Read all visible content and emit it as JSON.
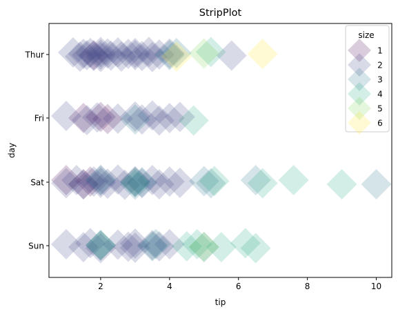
{
  "chart_data": {
    "type": "scatter",
    "title": "StripPlot",
    "xlabel": "tip",
    "ylabel": "day",
    "xlim": [
      0.5,
      10.45
    ],
    "x_ticks": [
      2,
      4,
      6,
      8,
      10
    ],
    "categories": [
      "Thur",
      "Fri",
      "Sat",
      "Sun"
    ],
    "grid": false,
    "marker": "diamond",
    "marker_alpha": 0.2,
    "legend": {
      "title": "size",
      "placement": "top-right",
      "entries": [
        "1",
        "2",
        "3",
        "4",
        "5",
        "6"
      ]
    },
    "series": [
      {
        "name": "1",
        "color": "#440154",
        "points": [
          {
            "day": "Fri",
            "tip": 1.5
          },
          {
            "day": "Fri",
            "tip": 2.0
          },
          {
            "day": "Fri",
            "tip": 2.2
          },
          {
            "day": "Sat",
            "tip": 1.0
          },
          {
            "day": "Sat",
            "tip": 1.5
          },
          {
            "day": "Sat",
            "tip": 1.7
          },
          {
            "day": "Thur",
            "tip": 1.8
          }
        ]
      },
      {
        "name": "2",
        "color": "#414487",
        "points": [
          {
            "day": "Thur",
            "tip": 1.2
          },
          {
            "day": "Thur",
            "tip": 1.4
          },
          {
            "day": "Thur",
            "tip": 1.5
          },
          {
            "day": "Thur",
            "tip": 1.6
          },
          {
            "day": "Thur",
            "tip": 1.7
          },
          {
            "day": "Thur",
            "tip": 1.8
          },
          {
            "day": "Thur",
            "tip": 2.0
          },
          {
            "day": "Thur",
            "tip": 2.0
          },
          {
            "day": "Thur",
            "tip": 2.0
          },
          {
            "day": "Thur",
            "tip": 2.2
          },
          {
            "day": "Thur",
            "tip": 2.3
          },
          {
            "day": "Thur",
            "tip": 2.5
          },
          {
            "day": "Thur",
            "tip": 2.6
          },
          {
            "day": "Thur",
            "tip": 2.8
          },
          {
            "day": "Thur",
            "tip": 3.0
          },
          {
            "day": "Thur",
            "tip": 3.0
          },
          {
            "day": "Thur",
            "tip": 3.2
          },
          {
            "day": "Thur",
            "tip": 3.4
          },
          {
            "day": "Thur",
            "tip": 3.5
          },
          {
            "day": "Thur",
            "tip": 3.7
          },
          {
            "day": "Thur",
            "tip": 4.0
          },
          {
            "day": "Thur",
            "tip": 5.8
          },
          {
            "day": "Fri",
            "tip": 1.0
          },
          {
            "day": "Fri",
            "tip": 1.6
          },
          {
            "day": "Fri",
            "tip": 1.9
          },
          {
            "day": "Fri",
            "tip": 2.5
          },
          {
            "day": "Fri",
            "tip": 3.0
          },
          {
            "day": "Fri",
            "tip": 3.2
          },
          {
            "day": "Fri",
            "tip": 3.5
          },
          {
            "day": "Fri",
            "tip": 3.7
          },
          {
            "day": "Fri",
            "tip": 4.0
          },
          {
            "day": "Fri",
            "tip": 4.3
          },
          {
            "day": "Sat",
            "tip": 1.0
          },
          {
            "day": "Sat",
            "tip": 1.3
          },
          {
            "day": "Sat",
            "tip": 1.5
          },
          {
            "day": "Sat",
            "tip": 1.8
          },
          {
            "day": "Sat",
            "tip": 2.0
          },
          {
            "day": "Sat",
            "tip": 2.0
          },
          {
            "day": "Sat",
            "tip": 2.2
          },
          {
            "day": "Sat",
            "tip": 2.5
          },
          {
            "day": "Sat",
            "tip": 2.7
          },
          {
            "day": "Sat",
            "tip": 3.0
          },
          {
            "day": "Sat",
            "tip": 3.0
          },
          {
            "day": "Sat",
            "tip": 3.2
          },
          {
            "day": "Sat",
            "tip": 3.5
          },
          {
            "day": "Sat",
            "tip": 3.7
          },
          {
            "day": "Sat",
            "tip": 4.0
          },
          {
            "day": "Sat",
            "tip": 4.3
          },
          {
            "day": "Sun",
            "tip": 1.0
          },
          {
            "day": "Sun",
            "tip": 1.5
          },
          {
            "day": "Sun",
            "tip": 1.7
          },
          {
            "day": "Sun",
            "tip": 2.0
          },
          {
            "day": "Sun",
            "tip": 2.0
          },
          {
            "day": "Sun",
            "tip": 2.5
          },
          {
            "day": "Sun",
            "tip": 2.8
          },
          {
            "day": "Sun",
            "tip": 3.0
          },
          {
            "day": "Sun",
            "tip": 3.0
          },
          {
            "day": "Sun",
            "tip": 3.5
          },
          {
            "day": "Sun",
            "tip": 3.7
          },
          {
            "day": "Sun",
            "tip": 4.0
          }
        ]
      },
      {
        "name": "3",
        "color": "#2a788e",
        "points": [
          {
            "day": "Thur",
            "tip": 4.0
          },
          {
            "day": "Thur",
            "tip": 4.2
          },
          {
            "day": "Fri",
            "tip": 3.0
          },
          {
            "day": "Sat",
            "tip": 2.0
          },
          {
            "day": "Sat",
            "tip": 3.0
          },
          {
            "day": "Sat",
            "tip": 3.2
          },
          {
            "day": "Sat",
            "tip": 5.0
          },
          {
            "day": "Sat",
            "tip": 5.2
          },
          {
            "day": "Sat",
            "tip": 6.5
          },
          {
            "day": "Sat",
            "tip": 10.0
          },
          {
            "day": "Sun",
            "tip": 2.0
          },
          {
            "day": "Sun",
            "tip": 3.5
          },
          {
            "day": "Sun",
            "tip": 3.6
          },
          {
            "day": "Sun",
            "tip": 5.0
          }
        ]
      },
      {
        "name": "4",
        "color": "#22a884",
        "points": [
          {
            "day": "Thur",
            "tip": 5.2
          },
          {
            "day": "Fri",
            "tip": 4.7
          },
          {
            "day": "Sat",
            "tip": 3.0
          },
          {
            "day": "Sat",
            "tip": 5.3
          },
          {
            "day": "Sat",
            "tip": 6.7
          },
          {
            "day": "Sat",
            "tip": 7.6
          },
          {
            "day": "Sat",
            "tip": 9.0
          },
          {
            "day": "Sun",
            "tip": 2.0
          },
          {
            "day": "Sun",
            "tip": 4.5
          },
          {
            "day": "Sun",
            "tip": 4.8
          },
          {
            "day": "Sun",
            "tip": 5.5
          },
          {
            "day": "Sun",
            "tip": 6.2
          },
          {
            "day": "Sun",
            "tip": 6.5
          }
        ]
      },
      {
        "name": "5",
        "color": "#7ad151",
        "points": [
          {
            "day": "Thur",
            "tip": 5.0
          },
          {
            "day": "Sun",
            "tip": 5.0
          }
        ]
      },
      {
        "name": "6",
        "color": "#fde725",
        "points": [
          {
            "day": "Thur",
            "tip": 4.2
          },
          {
            "day": "Thur",
            "tip": 6.7
          }
        ]
      }
    ]
  }
}
